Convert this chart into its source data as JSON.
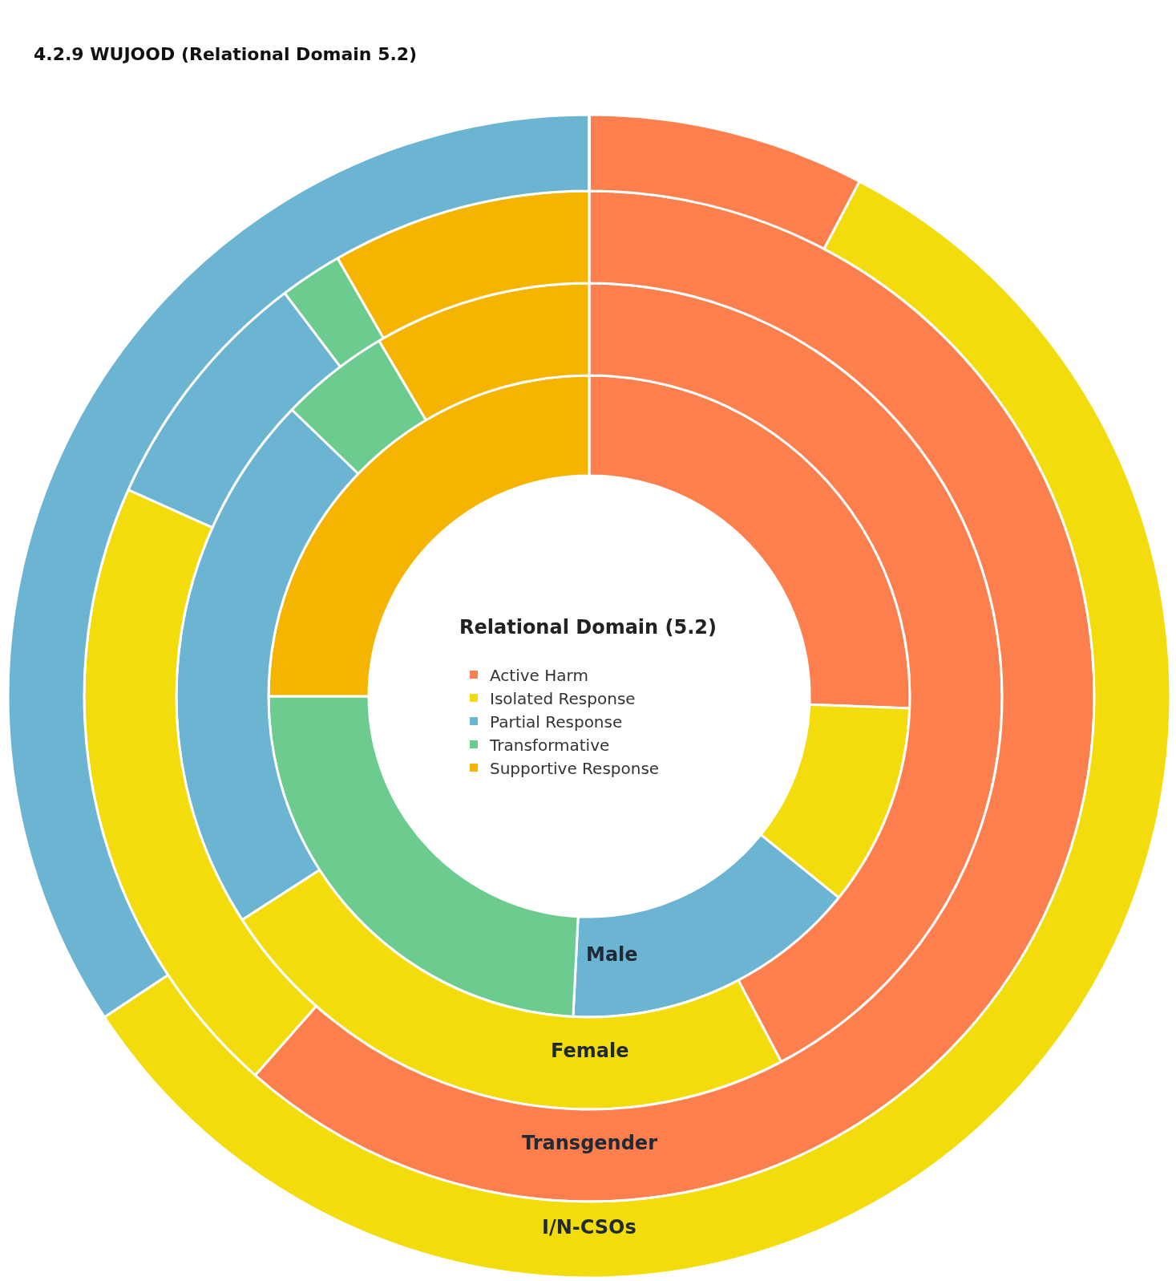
{
  "chart_data": {
    "type": "donut",
    "title": "4.2.9 WUJOOD (Relational Domain 5.2)",
    "legend_title": "Relational Domain (5.2)",
    "legend": "center",
    "categories": [
      "Active Harm",
      "Isolated Response",
      "Partial Response",
      "Transformative",
      "Supportive Response"
    ],
    "colors": [
      "#fd7f4e",
      "#f2dc0c",
      "#6bb5d2",
      "#6ccb8e",
      "#f5b400"
    ],
    "series": [
      {
        "name": "Male",
        "values": [
          25.6,
          10.2,
          15,
          24.2,
          25
        ]
      },
      {
        "name": "Female",
        "values": [
          42.3,
          23.6,
          21.3,
          4.3,
          8.5
        ]
      },
      {
        "name": "Transgender",
        "values": [
          61.5,
          20.2,
          8,
          2,
          8.3
        ]
      },
      {
        "name": "I/N-CSOs",
        "values": [
          7.7,
          58,
          34.3,
          0,
          0
        ]
      }
    ]
  }
}
